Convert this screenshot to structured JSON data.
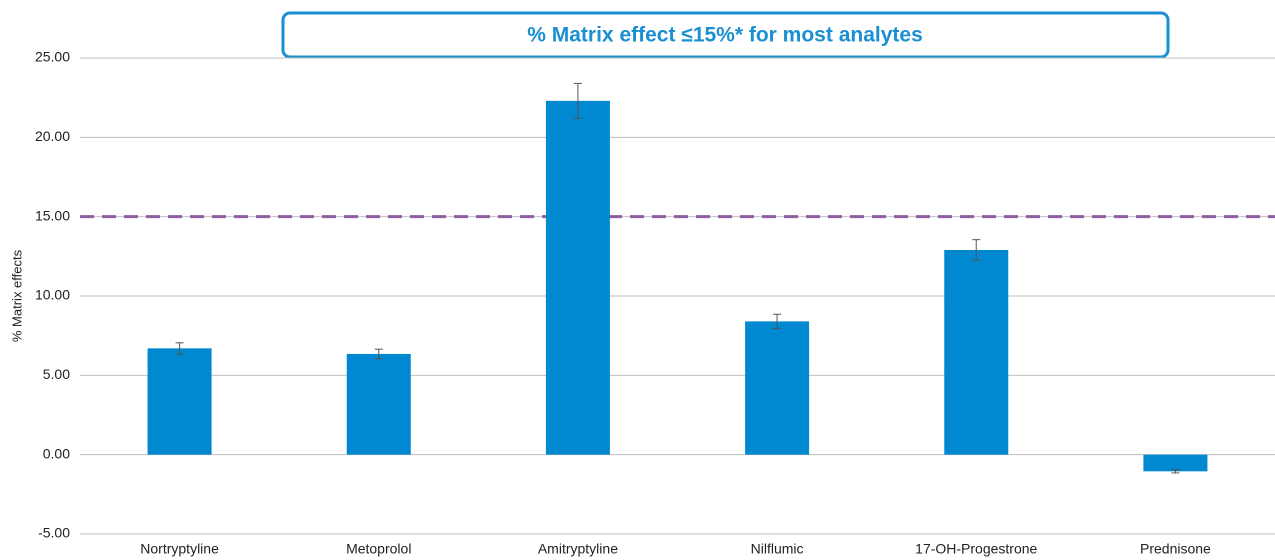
{
  "chart_data": {
    "type": "bar",
    "title": "% Matrix effect  ≤15%* for most analytes",
    "y_label": "% Matrix effects",
    "categories": [
      "Nortryptyline",
      "Metoprolol",
      "Amitryptyline",
      "Nilflumic",
      "17-OH-Progestrone",
      "Prednisone"
    ],
    "values": [
      6.7,
      6.35,
      22.3,
      8.4,
      12.9,
      -1.05
    ],
    "errors": [
      0.35,
      0.3,
      1.1,
      0.45,
      0.65,
      0.1
    ],
    "color": "#0088d1",
    "ylim": [
      -5,
      25
    ],
    "yticks": [
      {
        "value": -5,
        "label": "-5.00"
      },
      {
        "value": 0,
        "label": "0.00"
      },
      {
        "value": 5,
        "label": "5.00"
      },
      {
        "value": 10,
        "label": "10.00"
      },
      {
        "value": 15,
        "label": "15.00"
      },
      {
        "value": 20,
        "label": "20.00"
      },
      {
        "value": 25,
        "label": "25.00"
      }
    ],
    "grid": true,
    "reference_line": {
      "value": 15,
      "color": "#8e5ea2"
    }
  }
}
